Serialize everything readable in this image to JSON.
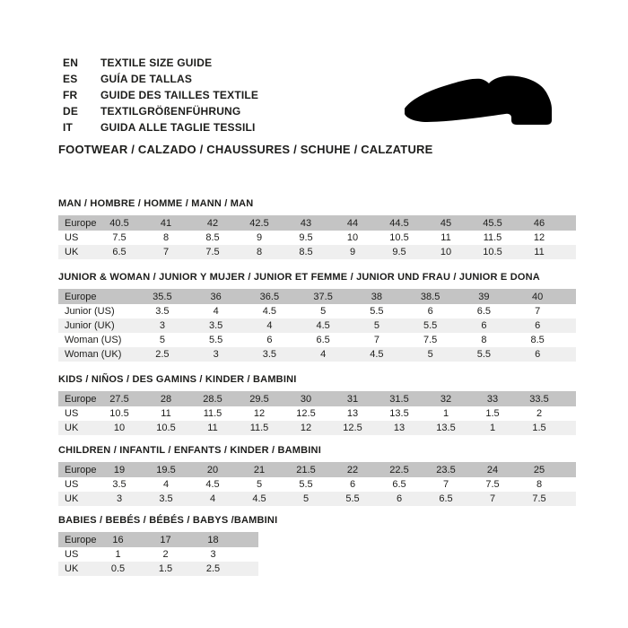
{
  "header": {
    "languages": [
      {
        "code": "EN",
        "label": "TEXTILE SIZE GUIDE"
      },
      {
        "code": "ES",
        "label": "GUÍA DE TALLAS"
      },
      {
        "code": "FR",
        "label": "GUIDE DES TAILLES TEXTILE"
      },
      {
        "code": "DE",
        "label": "TEXTILGRÖßENFÜHRUNG"
      },
      {
        "code": "IT",
        "label": "GUIDA ALLE TAGLIE TESSILI"
      }
    ],
    "category_heading": "FOOTWEAR / CALZADO / CHAUSSURES / SCHUHE / CALZATURE",
    "shoe_icon": "dress-shoe-silhouette"
  },
  "colors": {
    "background": "#ffffff",
    "text": "#1d1d1b",
    "table_header_bg": "#c4c4c4",
    "table_stripe_bg": "#efefef",
    "icon": "#000000"
  },
  "tables": [
    {
      "id": "man",
      "title": "MAN / HOMBRE / HOMME / MANN / MAN",
      "rows": [
        {
          "label": "Europe",
          "header": true,
          "values": [
            "40.5",
            "41",
            "42",
            "42.5",
            "43",
            "44",
            "44.5",
            "45",
            "45.5",
            "46"
          ]
        },
        {
          "label": "US",
          "values": [
            "7.5",
            "8",
            "8.5",
            "9",
            "9.5",
            "10",
            "10.5",
            "11",
            "11.5",
            "12"
          ]
        },
        {
          "label": "UK",
          "values": [
            "6.5",
            "7",
            "7.5",
            "8",
            "8.5",
            "9",
            "9.5",
            "10",
            "10.5",
            "11"
          ]
        }
      ]
    },
    {
      "id": "junior",
      "title": "JUNIOR & WOMAN / JUNIOR Y MUJER / JUNIOR ET FEMME / JUNIOR UND FRAU / JUNIOR E DONA",
      "rows": [
        {
          "label": "Europe",
          "header": true,
          "values": [
            "35.5",
            "36",
            "36.5",
            "37.5",
            "38",
            "38.5",
            "39",
            "40"
          ]
        },
        {
          "label": "Junior (US)",
          "values": [
            "3.5",
            "4",
            "4.5",
            "5",
            "5.5",
            "6",
            "6.5",
            "7"
          ]
        },
        {
          "label": "Junior (UK)",
          "values": [
            "3",
            "3.5",
            "4",
            "4.5",
            "5",
            "5.5",
            "6",
            "6"
          ]
        },
        {
          "label": "Woman (US)",
          "values": [
            "5",
            "5.5",
            "6",
            "6.5",
            "7",
            "7.5",
            "8",
            "8.5"
          ]
        },
        {
          "label": "Woman (UK)",
          "values": [
            "2.5",
            "3",
            "3.5",
            "4",
            "4.5",
            "5",
            "5.5",
            "6"
          ]
        }
      ]
    },
    {
      "id": "kids",
      "title": "KIDS / NIÑOS / DES GAMINS / KINDER / BAMBINI",
      "rows": [
        {
          "label": "Europe",
          "header": true,
          "values": [
            "27.5",
            "28",
            "28.5",
            "29.5",
            "30",
            "31",
            "31.5",
            "32",
            "33",
            "33.5"
          ]
        },
        {
          "label": "US",
          "values": [
            "10.5",
            "11",
            "11.5",
            "12",
            "12.5",
            "13",
            "13.5",
            "1",
            "1.5",
            "2"
          ]
        },
        {
          "label": "UK",
          "values": [
            "10",
            "10.5",
            "11",
            "11.5",
            "12",
            "12.5",
            "13",
            "13.5",
            "1",
            "1.5"
          ]
        }
      ]
    },
    {
      "id": "children",
      "title": "CHILDREN / INFANTIL / ENFANTS / KINDER / BAMBINI",
      "rows": [
        {
          "label": "Europe",
          "header": true,
          "values": [
            "19",
            "19.5",
            "20",
            "21",
            "21.5",
            "22",
            "22.5",
            "23.5",
            "24",
            "25"
          ]
        },
        {
          "label": "US",
          "values": [
            "3.5",
            "4",
            "4.5",
            "5",
            "5.5",
            "6",
            "6.5",
            "7",
            "7.5",
            "8"
          ]
        },
        {
          "label": "UK",
          "values": [
            "3",
            "3.5",
            "4",
            "4.5",
            "5",
            "5.5",
            "6",
            "6.5",
            "7",
            "7.5"
          ]
        }
      ]
    },
    {
      "id": "babies",
      "title": "BABIES  / BEBÉS / BÉBÉS / BABYS /BAMBINI",
      "rows": [
        {
          "label": "Europe",
          "header": true,
          "values": [
            "16",
            "17",
            "18"
          ]
        },
        {
          "label": "US",
          "values": [
            "1",
            "2",
            "3"
          ]
        },
        {
          "label": "UK",
          "values": [
            "0.5",
            "1.5",
            "2.5"
          ]
        }
      ]
    }
  ]
}
